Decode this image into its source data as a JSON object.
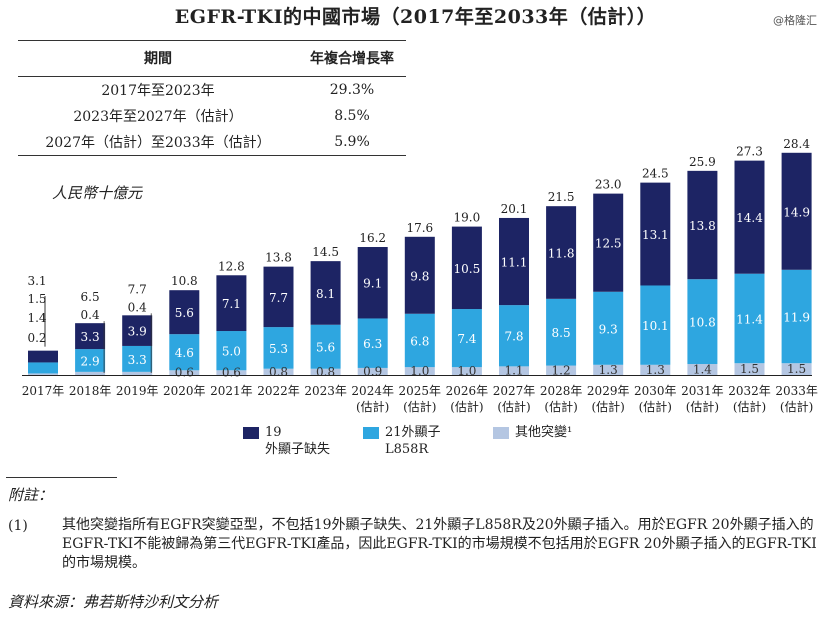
{
  "title": "EGFR-TKI的中國市場（2017年至2033年（估計））",
  "watermark": "@格隆汇",
  "cagr_table": {
    "headers": [
      "期間",
      "年複合增長率"
    ],
    "rows": [
      {
        "period": "2017年至2023年",
        "value": "29.3%"
      },
      {
        "period": "2023年至2027年（估計）",
        "value": "8.5%"
      },
      {
        "period": "2027年（估計）至2033年（估計）",
        "value": "5.9%"
      }
    ]
  },
  "unit_label": "人民幣十億元",
  "chart_data": {
    "type": "bar",
    "stacked": true,
    "categories": [
      "2017年",
      "2018年",
      "2019年",
      "2020年",
      "2021年",
      "2022年",
      "2023年",
      "2024年\n(估計)",
      "2025年\n(估計)",
      "2026年\n(估計)",
      "2027年\n(估計)",
      "2028年\n(估計)",
      "2029年\n(估計)",
      "2030年\n(估計)",
      "2031年\n(估計)",
      "2032年\n(估計)",
      "2033年\n(估計)"
    ],
    "series": [
      {
        "name": "其他突變¹",
        "color": "#b4c6e2",
        "values": [
          0.2,
          0.4,
          0.4,
          0.6,
          0.6,
          0.8,
          0.8,
          0.9,
          1.0,
          1.0,
          1.1,
          1.2,
          1.3,
          1.3,
          1.4,
          1.5,
          1.5
        ]
      },
      {
        "name": "21外顯子 L858R",
        "color": "#2ea6e0",
        "values": [
          1.4,
          2.9,
          3.3,
          4.6,
          5.0,
          5.3,
          5.6,
          6.3,
          6.8,
          7.4,
          7.8,
          8.5,
          9.3,
          10.1,
          10.8,
          11.4,
          11.9
        ]
      },
      {
        "name": "19 外顯子缺失",
        "color": "#1d2464",
        "values": [
          1.5,
          3.3,
          3.9,
          5.6,
          7.1,
          7.7,
          8.1,
          9.1,
          9.8,
          10.5,
          11.1,
          11.8,
          12.5,
          13.1,
          13.8,
          14.4,
          14.9
        ]
      }
    ],
    "totals": [
      3.1,
      6.5,
      7.7,
      10.8,
      12.8,
      13.8,
      14.5,
      16.2,
      17.6,
      19.0,
      20.1,
      21.5,
      23.0,
      24.5,
      25.9,
      27.3,
      28.4
    ],
    "ylabel": "人民幣十億元",
    "ylim": [
      0,
      28.4
    ],
    "legend_position": "bottom",
    "grid": false
  },
  "legend": [
    {
      "line1": "19",
      "line2": "外顯子缺失"
    },
    {
      "line1": "21外顯子",
      "line2": "L858R"
    },
    {
      "line1": "其他突變¹",
      "line2": ""
    }
  ],
  "notes_heading": "附註：",
  "note_number": "(1)",
  "note_text": "其他突變指所有EGFR突變亞型，不包括19外顯子缺失、21外顯子L858R及20外顯子插入。用於EGFR 20外顯子插入的EGFR-TKI不能被歸為第三代EGFR-TKI產品，因此EGFR-TKI的市場規模不包括用於EGFR 20外顯子插入的EGFR-TKI的市場規模。",
  "source": "資料來源：弗若斯特沙利文分析"
}
